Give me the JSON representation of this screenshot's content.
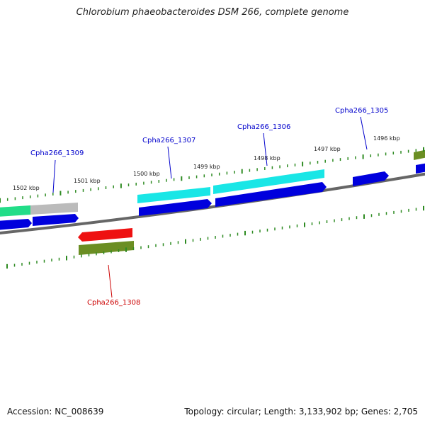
{
  "title": "Chlorobium phaeobacteroides DSM 266, complete genome",
  "footer": {
    "accession": "Accession: NC_008639",
    "summary": "Topology: circular; Length: 3,133,902 bp; Genes: 2,705"
  },
  "scale_labels": [
    "1502 kbp",
    "1501 kbp",
    "1500 kbp",
    "1499 kbp",
    "1498 kbp",
    "1497 kbp",
    "1496 kbp"
  ],
  "gene_labels": [
    {
      "text": "Cpha266_1309",
      "color": "#0000cc"
    },
    {
      "text": "Cpha266_1307",
      "color": "#0000cc"
    },
    {
      "text": "Cpha266_1306",
      "color": "#0000cc"
    },
    {
      "text": "Cpha266_1305",
      "color": "#0000cc"
    },
    {
      "text": "Cpha266_1308",
      "color": "#cc0000"
    }
  ],
  "colors": {
    "backbone": "#777777",
    "tick": "#2e8b22",
    "cds_blue": "#0000dd",
    "cyan": "#19e6e6",
    "red": "#ee1111",
    "olive": "#6b8e23",
    "grey": "#bbbbbb",
    "seagreen": "#22dd88"
  }
}
